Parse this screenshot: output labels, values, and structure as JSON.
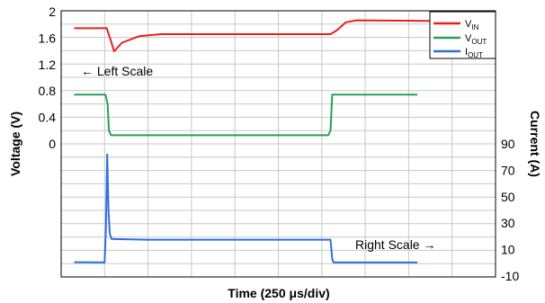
{
  "chart_data": {
    "type": "line",
    "xlabel_main": "Time (250 ",
    "xlabel_mu": "μ",
    "xlabel_tail": "s/div)",
    "ylabel_left": "Voltage (V)",
    "ylabel_right": "Current (A)",
    "left_ticks": [
      "2",
      "1.6",
      "1.2",
      "0.8",
      "0.4",
      "0"
    ],
    "left_tick_values": [
      2,
      1.6,
      1.2,
      0.8,
      0.4,
      0
    ],
    "right_ticks": [
      "90",
      "70",
      "50",
      "30",
      "10",
      "-10"
    ],
    "right_tick_values": [
      90,
      70,
      50,
      30,
      10,
      -10
    ],
    "left_annotation": "← Left Scale",
    "right_annotation": "Right Scale →",
    "legend": {
      "vin": {
        "main": "V",
        "sub": "IN"
      },
      "vout": {
        "main": "V",
        "sub": "OUT"
      },
      "iout": {
        "main": "I",
        "sub": "OUT"
      }
    },
    "x_range_div": [
      0,
      10
    ],
    "grid": true,
    "legend_position": "top-right",
    "series": [
      {
        "key": "vin",
        "color": "#e8201e",
        "axis": "left",
        "points": [
          [
            0.3,
            1.75
          ],
          [
            1.05,
            1.75
          ],
          [
            1.15,
            1.55
          ],
          [
            1.22,
            1.4
          ],
          [
            1.4,
            1.53
          ],
          [
            1.8,
            1.63
          ],
          [
            2.3,
            1.66
          ],
          [
            3.5,
            1.66
          ],
          [
            5.5,
            1.66
          ],
          [
            6.2,
            1.66
          ],
          [
            6.35,
            1.72
          ],
          [
            6.55,
            1.84
          ],
          [
            6.8,
            1.87
          ],
          [
            8.5,
            1.86
          ],
          [
            10.0,
            1.86
          ]
        ]
      },
      {
        "key": "vout",
        "color": "#2a9e59",
        "axis": "left",
        "points": [
          [
            0.3,
            0.745
          ],
          [
            1.02,
            0.745
          ],
          [
            1.07,
            0.6
          ],
          [
            1.1,
            0.2
          ],
          [
            1.15,
            0.13
          ],
          [
            2.0,
            0.13
          ],
          [
            6.15,
            0.13
          ],
          [
            6.2,
            0.2
          ],
          [
            6.24,
            0.745
          ],
          [
            8.0,
            0.745
          ],
          [
            8.2,
            0.745
          ]
        ]
      },
      {
        "key": "iout",
        "color": "#2e6fe0",
        "axis": "right",
        "points": [
          [
            0.3,
            0.5
          ],
          [
            1.0,
            0.3
          ],
          [
            1.03,
            25
          ],
          [
            1.06,
            82
          ],
          [
            1.09,
            40
          ],
          [
            1.12,
            22
          ],
          [
            1.16,
            18
          ],
          [
            2.0,
            17.5
          ],
          [
            4.0,
            17.5
          ],
          [
            6.2,
            17.5
          ],
          [
            6.24,
            3
          ],
          [
            6.27,
            0.3
          ],
          [
            8.0,
            0.3
          ],
          [
            8.2,
            0.3
          ]
        ]
      }
    ]
  }
}
